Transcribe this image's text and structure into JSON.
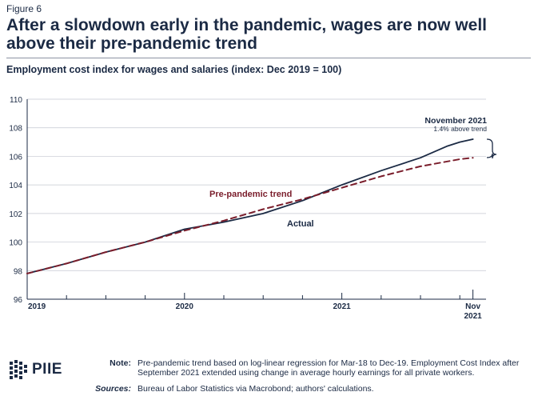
{
  "figure_label": "Figure 6",
  "title": "After a slowdown early in the pandemic, wages are now well above their pre-pandemic trend",
  "subtitle": "Employment cost index for wages and salaries (index: Dec 2019 = 100)",
  "chart_data": {
    "type": "line",
    "title": "After a slowdown early in the pandemic, wages are now well above their pre-pandemic trend",
    "ylabel": "Employment cost index for wages and salaries (index: Dec 2019 = 100)",
    "xlabel": "",
    "ylim": [
      96,
      110
    ],
    "xlim": [
      0,
      35
    ],
    "y_ticks": [
      96,
      98,
      100,
      102,
      104,
      106,
      108,
      110
    ],
    "x_tick_labels": [
      {
        "x": 0,
        "label": "2019"
      },
      {
        "x": 12,
        "label": "2020"
      },
      {
        "x": 24,
        "label": "2021"
      },
      {
        "x": 34,
        "label": "Nov\n2021"
      }
    ],
    "series": [
      {
        "name": "Actual",
        "style": "solid",
        "color": "#1b2a44",
        "x": [
          0,
          3,
          6,
          9,
          12,
          15,
          18,
          21,
          24,
          27,
          30,
          31,
          32,
          33,
          34
        ],
        "values": [
          97.8,
          98.5,
          99.3,
          100.0,
          100.9,
          101.4,
          102.0,
          102.9,
          104.0,
          105.0,
          105.9,
          106.3,
          106.7,
          107.0,
          107.2
        ]
      },
      {
        "name": "Pre-pandemic trend",
        "style": "dashed",
        "color": "#7a1d2b",
        "x": [
          0,
          3,
          6,
          9,
          12,
          15,
          18,
          21,
          24,
          27,
          30,
          33,
          34
        ],
        "values": [
          97.8,
          98.5,
          99.3,
          100.0,
          100.8,
          101.5,
          102.3,
          103.0,
          103.8,
          104.6,
          105.3,
          105.8,
          105.9
        ]
      }
    ],
    "annotations": {
      "actual_label": "Actual",
      "trend_label": "Pre-pandemic trend",
      "callout_title": "November 2021",
      "callout_text": "1.4% above trend"
    }
  },
  "logo": {
    "text": "PIIE"
  },
  "note": {
    "label": "Note:",
    "text": "Pre-pandemic trend based on log-linear regression for Mar-18 to Dec-19. Employment Cost Index after September 2021 extended using change in average hourly earnings for all private workers."
  },
  "sources": {
    "label": "Sources:",
    "text": "Bureau of Labor Statistics via Macrobond; authors' calculations."
  }
}
